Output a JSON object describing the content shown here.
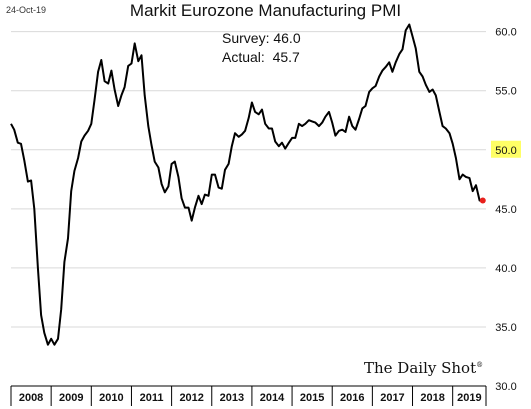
{
  "header": {
    "date_stamp": "24-Oct-19",
    "survey_label": "Survey: 46.0",
    "actual_label": "Actual:  45.7",
    "brand": "The Daily Shot",
    "brand_mark": "®"
  },
  "colors": {
    "line": "#000000",
    "last_point": "#e8201c",
    "highlight": "#ffff66",
    "grid": "#d9d9d9"
  },
  "chart_data": {
    "type": "line",
    "title": "Markit Eurozone Manufacturing PMI",
    "xlabel": "",
    "ylabel": "",
    "ylim": [
      30,
      62
    ],
    "y_ticks": [
      30,
      35,
      40,
      45,
      50,
      55,
      60
    ],
    "y_tick_labels": [
      "30.0",
      "35.0",
      "40.0",
      "45.0",
      "50.0",
      "55.0",
      "60.0"
    ],
    "highlighted_tick": "50.0",
    "x_range": [
      2008,
      2019.83
    ],
    "year_labels": [
      "2008",
      "2009",
      "2010",
      "2011",
      "2012",
      "2013",
      "2014",
      "2015",
      "2016",
      "2017",
      "2018",
      "2019"
    ],
    "grid": "horizontal",
    "series": [
      {
        "x": [
          2008.0,
          2008.08,
          2008.17,
          2008.25,
          2008.33,
          2008.42,
          2008.5,
          2008.58,
          2008.67,
          2008.75,
          2008.83,
          2008.92,
          2009.0,
          2009.08,
          2009.17,
          2009.25,
          2009.33,
          2009.42,
          2009.5,
          2009.58,
          2009.67,
          2009.75,
          2009.83,
          2009.92,
          2010.0,
          2010.08,
          2010.17,
          2010.25,
          2010.33,
          2010.42,
          2010.5,
          2010.58,
          2010.67,
          2010.75,
          2010.83,
          2010.92,
          2011.0,
          2011.08,
          2011.17,
          2011.25,
          2011.33,
          2011.42,
          2011.5,
          2011.58,
          2011.67,
          2011.75,
          2011.83,
          2011.92,
          2012.0,
          2012.08,
          2012.17,
          2012.25,
          2012.33,
          2012.42,
          2012.5,
          2012.58,
          2012.67,
          2012.75,
          2012.83,
          2012.92,
          2013.0,
          2013.08,
          2013.17,
          2013.25,
          2013.33,
          2013.42,
          2013.5,
          2013.58,
          2013.67,
          2013.75,
          2013.83,
          2013.92,
          2014.0,
          2014.08,
          2014.17,
          2014.25,
          2014.33,
          2014.42,
          2014.5,
          2014.58,
          2014.67,
          2014.75,
          2014.83,
          2014.92,
          2015.0,
          2015.08,
          2015.17,
          2015.25,
          2015.33,
          2015.42,
          2015.5,
          2015.58,
          2015.67,
          2015.75,
          2015.83,
          2015.92,
          2016.0,
          2016.08,
          2016.17,
          2016.25,
          2016.33,
          2016.42,
          2016.5,
          2016.58,
          2016.67,
          2016.75,
          2016.83,
          2016.92,
          2017.0,
          2017.08,
          2017.17,
          2017.25,
          2017.33,
          2017.42,
          2017.5,
          2017.58,
          2017.67,
          2017.75,
          2017.83,
          2017.92,
          2018.0,
          2018.08,
          2018.17,
          2018.25,
          2018.33,
          2018.42,
          2018.5,
          2018.58,
          2018.67,
          2018.75,
          2018.83,
          2018.92,
          2019.0,
          2019.08,
          2019.17,
          2019.25,
          2019.33,
          2019.42,
          2019.5,
          2019.58,
          2019.67,
          2019.75
        ],
        "values": [
          52.2,
          51.7,
          50.6,
          50.5,
          49.1,
          47.3,
          47.4,
          45.0,
          40.0,
          36.0,
          34.5,
          33.5,
          34.0,
          33.5,
          34.0,
          36.5,
          40.5,
          42.5,
          46.5,
          48.2,
          49.3,
          50.7,
          51.2,
          51.6,
          52.2,
          54.2,
          56.6,
          57.6,
          55.8,
          55.6,
          56.7,
          55.1,
          53.7,
          54.6,
          55.3,
          57.1,
          57.3,
          59.0,
          57.5,
          58.0,
          54.6,
          52.0,
          50.4,
          49.0,
          48.5,
          47.1,
          46.4,
          46.9,
          48.8,
          49.0,
          47.7,
          45.9,
          45.1,
          45.1,
          44.0,
          45.1,
          46.1,
          45.4,
          46.2,
          46.1,
          47.9,
          47.9,
          46.8,
          46.7,
          48.3,
          48.8,
          50.3,
          51.4,
          51.1,
          51.3,
          51.6,
          52.7,
          54.0,
          53.2,
          53.0,
          53.4,
          52.2,
          51.8,
          51.8,
          50.7,
          50.3,
          50.6,
          50.1,
          50.6,
          51.0,
          51.0,
          52.2,
          52.0,
          52.2,
          52.5,
          52.4,
          52.3,
          52.0,
          52.3,
          52.8,
          53.2,
          52.3,
          51.2,
          51.6,
          51.7,
          51.5,
          52.8,
          52.0,
          51.7,
          52.6,
          53.5,
          53.7,
          54.9,
          55.2,
          55.4,
          56.2,
          56.7,
          57.0,
          57.4,
          56.6,
          57.4,
          58.1,
          58.5,
          60.1,
          60.6,
          59.6,
          58.6,
          56.6,
          56.2,
          55.5,
          54.9,
          55.1,
          54.6,
          53.2,
          52.0,
          51.8,
          51.4,
          50.5,
          49.3,
          47.5,
          47.9,
          47.7,
          47.6,
          46.5,
          47.0,
          45.7,
          45.7
        ]
      }
    ],
    "last_value": 45.7
  }
}
